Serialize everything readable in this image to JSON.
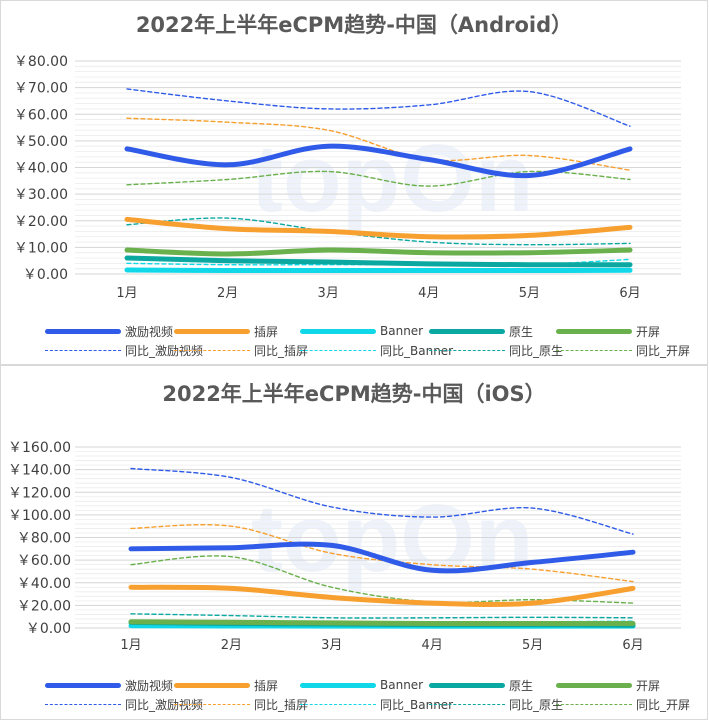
{
  "chart_data": [
    {
      "type": "line",
      "title": "2022年上半年eCPM趋势-中国（Android）",
      "categories": [
        "1月",
        "2月",
        "3月",
        "4月",
        "5月",
        "6月"
      ],
      "ylim": [
        0,
        80
      ],
      "yticks": [
        0,
        10,
        20,
        30,
        40,
        50,
        60,
        70,
        80
      ],
      "ytick_labels": [
        "￥0.00",
        "￥10.00",
        "￥20.00",
        "￥30.00",
        "￥40.00",
        "￥50.00",
        "￥60.00",
        "￥70.00",
        "￥80.00"
      ],
      "grid": true,
      "legend_position": "bottom",
      "series": [
        {
          "name": "激励视频",
          "style": "solid",
          "color": "#2f5be8",
          "values": [
            47,
            41,
            48,
            43,
            37,
            47
          ]
        },
        {
          "name": "插屏",
          "style": "solid",
          "color": "#f7a030",
          "values": [
            20.5,
            17,
            16,
            14,
            14.5,
            17.5
          ]
        },
        {
          "name": "Banner",
          "style": "solid",
          "color": "#10d8e8",
          "values": [
            1.5,
            1.3,
            1.3,
            1.3,
            1.3,
            1.4
          ]
        },
        {
          "name": "原生",
          "style": "solid",
          "color": "#0aa8a0",
          "values": [
            6,
            5,
            4.5,
            3.8,
            3.5,
            3.5
          ]
        },
        {
          "name": "开屏",
          "style": "solid",
          "color": "#6ab04c",
          "values": [
            9,
            7.5,
            9,
            8,
            8,
            9
          ]
        },
        {
          "name": "同比_激励视频",
          "style": "dash",
          "color": "#2f5be8",
          "values": [
            69.5,
            65,
            62,
            63.5,
            68.5,
            55.5
          ]
        },
        {
          "name": "同比_插屏",
          "style": "dash",
          "color": "#f7a030",
          "values": [
            58.5,
            57,
            54,
            43,
            44.5,
            39
          ]
        },
        {
          "name": "同比_Banner",
          "style": "dash",
          "color": "#10d8e8",
          "values": [
            4,
            3.5,
            3.5,
            3.5,
            3.5,
            5.5
          ]
        },
        {
          "name": "同比_原生",
          "style": "dash",
          "color": "#0aa8a0",
          "values": [
            18.5,
            21,
            16,
            12,
            11,
            11.5
          ]
        },
        {
          "name": "同比_开屏",
          "style": "dash",
          "color": "#6ab04c",
          "values": [
            33.5,
            35.5,
            38.5,
            33,
            38.5,
            35.5
          ]
        }
      ]
    },
    {
      "type": "line",
      "title": "2022年上半年eCPM趋势-中国（iOS）",
      "categories": [
        "1月",
        "2月",
        "3月",
        "4月",
        "5月",
        "6月"
      ],
      "ylim": [
        0,
        160
      ],
      "yticks": [
        0,
        20,
        40,
        60,
        80,
        100,
        120,
        140,
        160
      ],
      "ytick_labels": [
        "￥0.00",
        "￥20.00",
        "￥40.00",
        "￥60.00",
        "￥80.00",
        "￥100.00",
        "￥120.00",
        "￥140.00",
        "￥160.00"
      ],
      "grid": true,
      "legend_position": "bottom",
      "series": [
        {
          "name": "激励视频",
          "style": "solid",
          "color": "#2f5be8",
          "values": [
            70,
            71,
            73,
            51,
            58,
            67
          ]
        },
        {
          "name": "插屏",
          "style": "solid",
          "color": "#f7a030",
          "values": [
            36,
            35,
            27,
            22,
            22,
            35
          ]
        },
        {
          "name": "Banner",
          "style": "solid",
          "color": "#10d8e8",
          "values": [
            2,
            1.8,
            1.7,
            1.6,
            1.6,
            1.7
          ]
        },
        {
          "name": "原生",
          "style": "solid",
          "color": "#0aa8a0",
          "values": [
            5,
            4,
            3.5,
            3,
            3,
            2.5
          ]
        },
        {
          "name": "开屏",
          "style": "solid",
          "color": "#6ab04c",
          "values": [
            5.5,
            5,
            4.5,
            4,
            4,
            4
          ]
        },
        {
          "name": "同比_激励视频",
          "style": "dash",
          "color": "#2f5be8",
          "values": [
            141,
            133,
            107,
            98,
            106,
            83
          ]
        },
        {
          "name": "同比_插屏",
          "style": "dash",
          "color": "#f7a030",
          "values": [
            88,
            90,
            66,
            56,
            52,
            41
          ]
        },
        {
          "name": "同比_Banner",
          "style": "dash",
          "color": "#10d8e8",
          "values": [
            6,
            6,
            5.5,
            5.5,
            5.5,
            6
          ]
        },
        {
          "name": "同比_原生",
          "style": "dash",
          "color": "#0aa8a0",
          "values": [
            12.5,
            11,
            9,
            9,
            9.5,
            9
          ]
        },
        {
          "name": "同比_开屏",
          "style": "dash",
          "color": "#6ab04c",
          "values": [
            56,
            63,
            36,
            23,
            25,
            22
          ]
        }
      ]
    }
  ],
  "watermark": "topOn"
}
